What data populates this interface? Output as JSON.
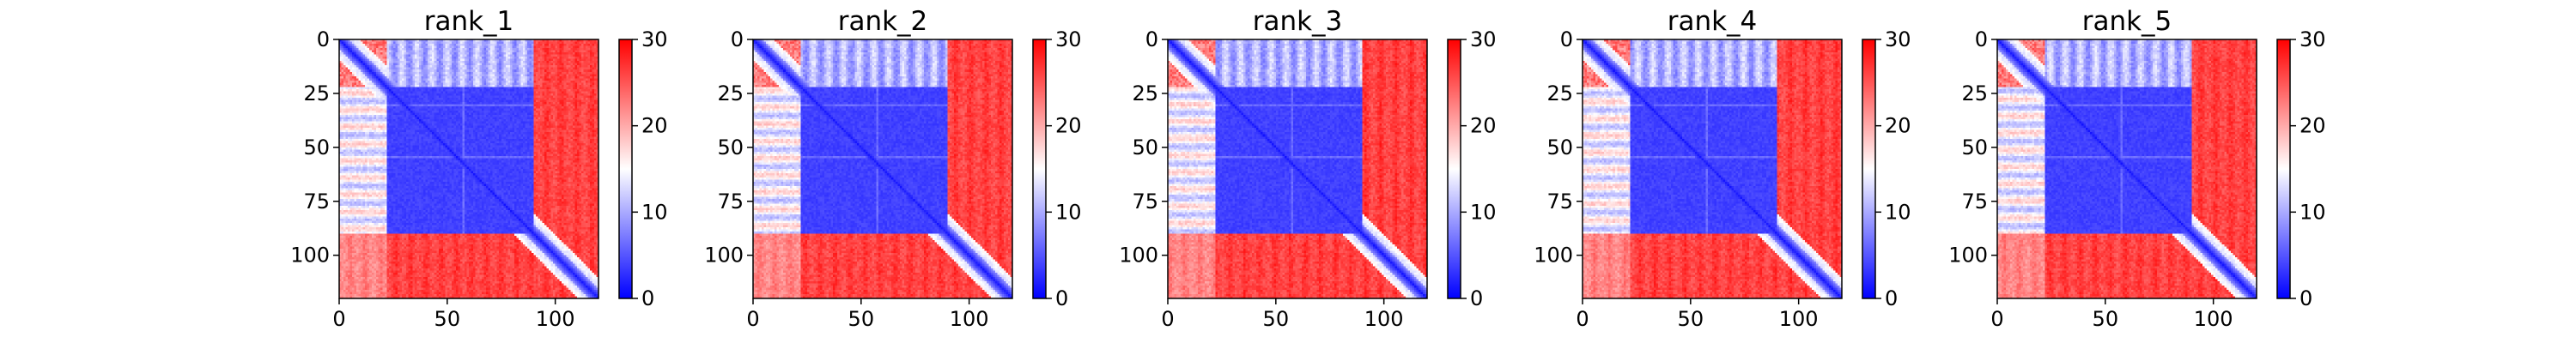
{
  "chart_data": {
    "type": "heatmap",
    "description": "Predicted aligned error (PAE) matrices for five ranked models; colormap bwr from 0 (blue) to 30 (red)",
    "matrix_size": 120,
    "colormap": {
      "name": "bwr",
      "low": "#0000ff",
      "mid": "#ffffff",
      "high": "#ff0000"
    },
    "vmin": 0,
    "vmax": 30,
    "x_ticks": [
      "0",
      "50",
      "100"
    ],
    "x_tick_values": [
      0,
      50,
      100
    ],
    "y_ticks": [
      "0",
      "25",
      "50",
      "75",
      "100"
    ],
    "y_tick_values": [
      0,
      25,
      50,
      75,
      100
    ],
    "colorbar_ticks": [
      "0",
      "10",
      "20",
      "30"
    ],
    "colorbar_tick_values": [
      0,
      10,
      20,
      30
    ],
    "structure": {
      "core_domain": [
        22,
        90
      ],
      "n_terminal_linker": [
        0,
        22
      ],
      "c_terminal_tail": [
        90,
        120
      ],
      "core_error": 3,
      "offdiag_error": 26,
      "diagonal_band_error": 1
    },
    "panels": [
      {
        "title": "rank_1"
      },
      {
        "title": "rank_2"
      },
      {
        "title": "rank_3"
      },
      {
        "title": "rank_4"
      },
      {
        "title": "rank_5"
      }
    ]
  }
}
